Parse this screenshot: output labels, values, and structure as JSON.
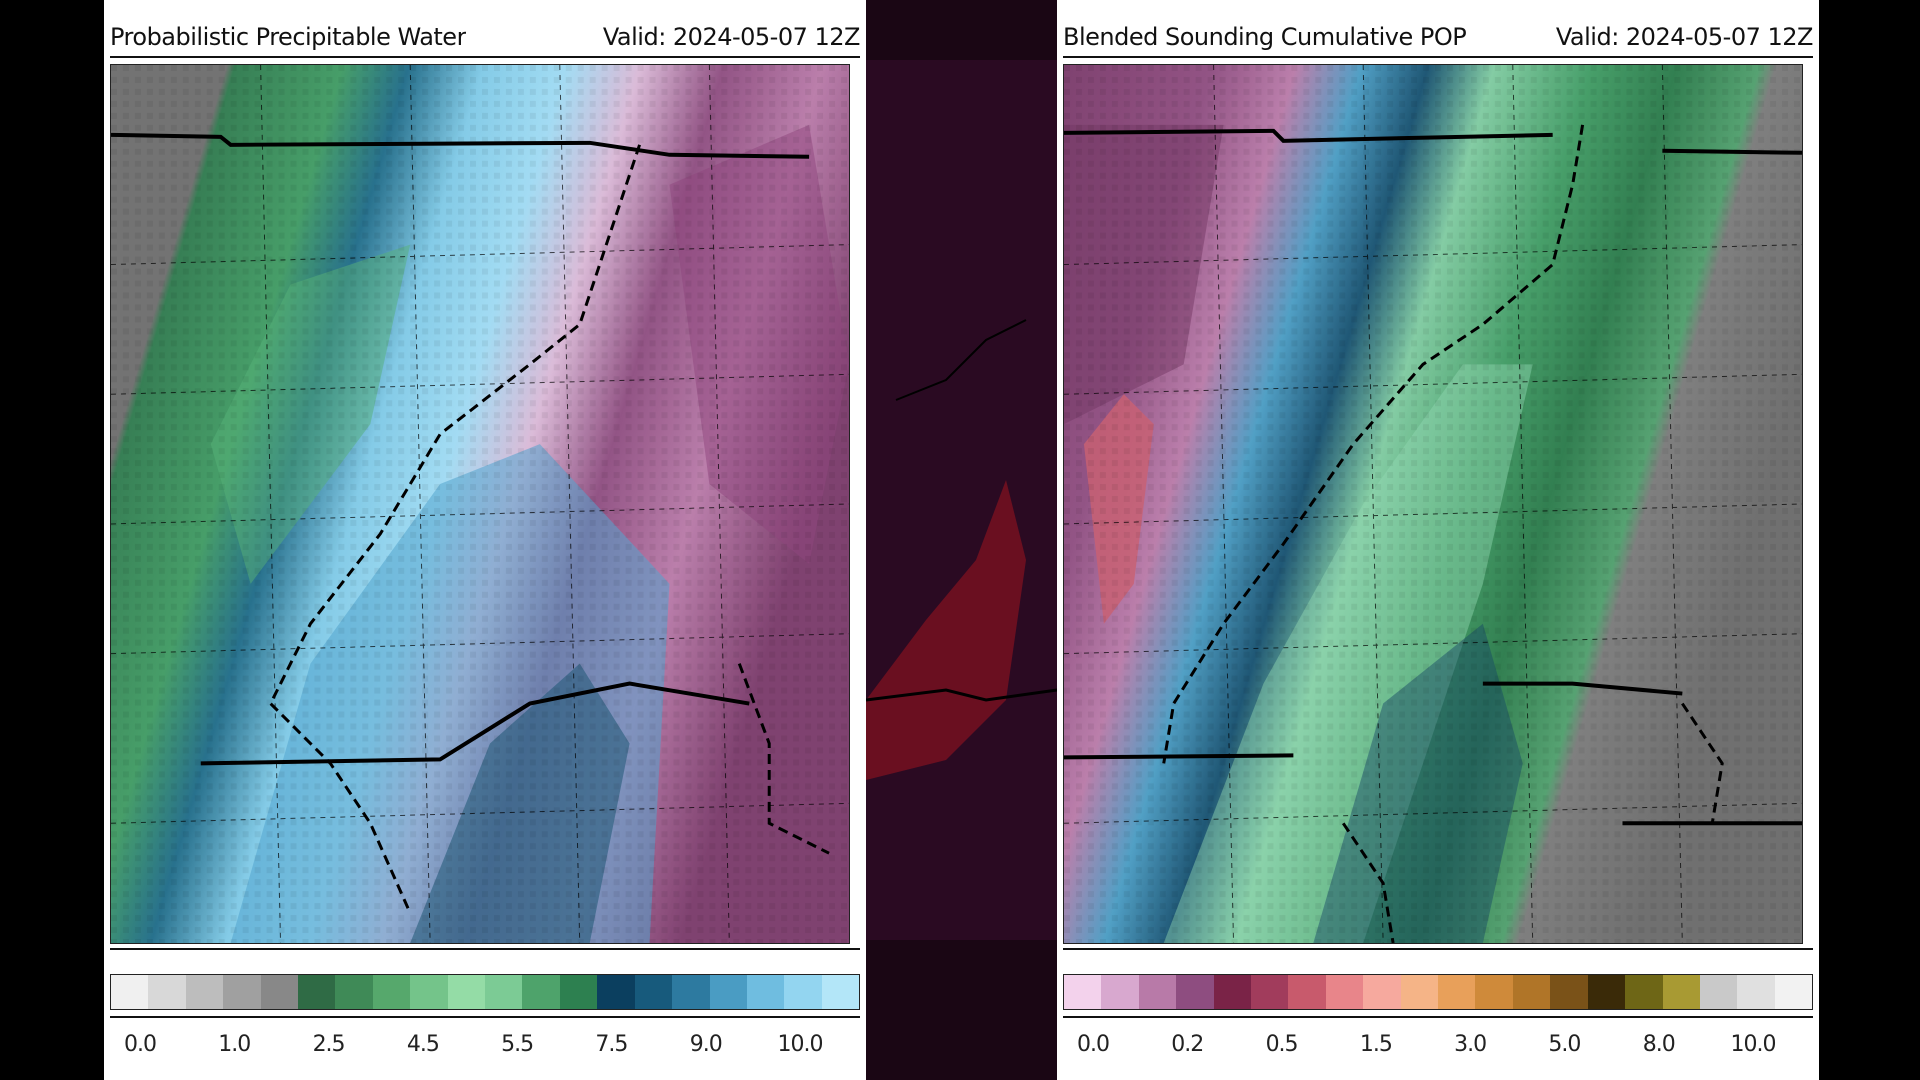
{
  "left_panel": {
    "title_left": "Probabilistic Precipitable Water",
    "title_right": "Valid: 2024-05-07 12Z",
    "colorbar": {
      "colors": [
        "#f0f0f0",
        "#d8d8d8",
        "#bdbdbd",
        "#a0a0a0",
        "#888888",
        "#2f6b45",
        "#3f8a57",
        "#56a86c",
        "#74c48a",
        "#94dca6",
        "#7ccb95",
        "#4ea36b",
        "#2d8050",
        "#0b3f5f",
        "#175a7c",
        "#2d7aa0",
        "#4a9cc3",
        "#6fbde0",
        "#93d5f0",
        "#b3e6f8"
      ],
      "ticks": [
        "0.0",
        "1.0",
        "2.5",
        "4.5",
        "5.5",
        "7.5",
        "9.0",
        "10.0"
      ]
    }
  },
  "right_panel": {
    "title_left": "Blended Sounding Cumulative POP",
    "title_right": "Valid: 2024-05-07 12Z",
    "colorbar": {
      "colors": [
        "#f3d2ec",
        "#d8a8cf",
        "#b87aa8",
        "#8e4d80",
        "#7a2347",
        "#a13c5c",
        "#c85a6c",
        "#e8858a",
        "#f6a99e",
        "#f5b487",
        "#e8a05a",
        "#cf8a3a",
        "#b07528",
        "#7a5218",
        "#3a2a08",
        "#6e6616",
        "#a89a33",
        "#c9c9c9",
        "#e0e0e0",
        "#f2f2f2"
      ],
      "ticks": [
        "0.0",
        "0.2",
        "0.5",
        "1.5",
        "3.0",
        "5.0",
        "8.0",
        "10.0"
      ]
    }
  }
}
